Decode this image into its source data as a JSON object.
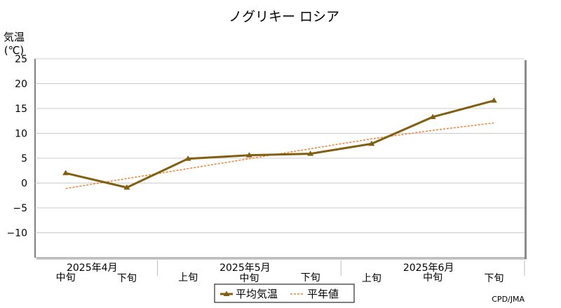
{
  "chart_data": {
    "type": "line",
    "title": "ノグリキー ロシア",
    "ylabel_line1": "気温",
    "ylabel_line2": "(℃)",
    "ylim": [
      -15,
      25
    ],
    "yticks": [
      -10,
      -5,
      0,
      5,
      10,
      15,
      20,
      25
    ],
    "grid": true,
    "categories": [
      "中旬",
      "下旬",
      "上旬",
      "中旬",
      "下旬",
      "上旬",
      "中旬",
      "下旬"
    ],
    "months": [
      {
        "label": "2025年4月",
        "span": [
          0,
          1
        ]
      },
      {
        "label": "2025年5月",
        "span": [
          2,
          4
        ]
      },
      {
        "label": "2025年6月",
        "span": [
          5,
          7
        ]
      }
    ],
    "series": [
      {
        "name": "平均気温",
        "color": "#806010",
        "style": "solid-marker",
        "values": [
          2.0,
          -0.9,
          4.9,
          5.6,
          5.9,
          7.9,
          13.3,
          16.6
        ]
      },
      {
        "name": "平年値",
        "color": "#f08030",
        "style": "dashed",
        "values": [
          -1.1,
          0.9,
          2.9,
          4.9,
          6.9,
          8.9,
          10.6,
          12.1
        ]
      }
    ],
    "legend_position": "bottom-center",
    "credit": "CPD/JMA"
  }
}
